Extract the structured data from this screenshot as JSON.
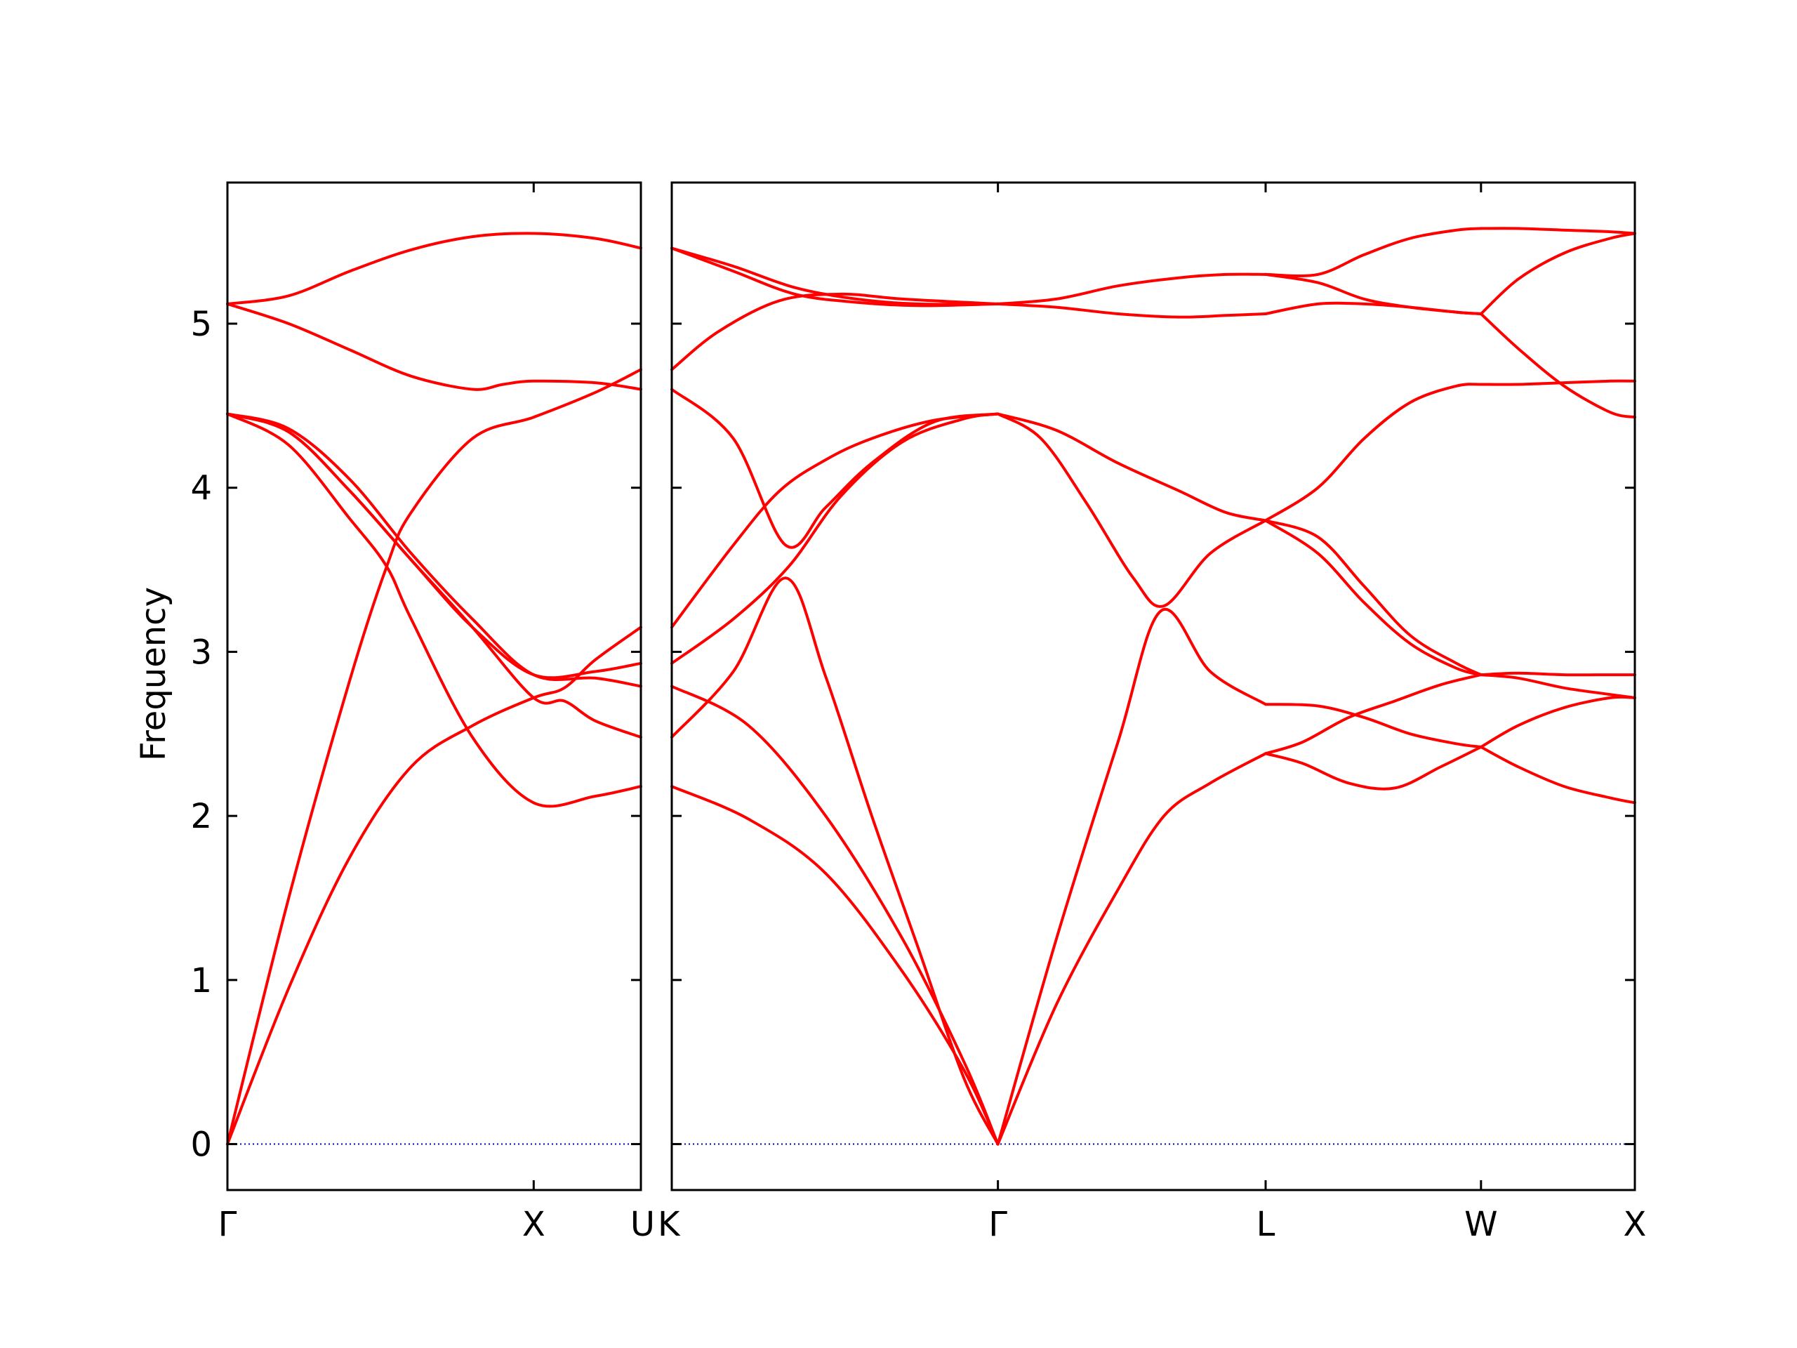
{
  "chart_data": {
    "type": "line",
    "title": "",
    "ylabel": "Frequency",
    "xlabel": "",
    "ylim": [
      -0.28,
      5.86
    ],
    "yticks": [
      0,
      1,
      2,
      3,
      4,
      5
    ],
    "ytick_labels": [
      "0",
      "1",
      "2",
      "3",
      "4",
      "5"
    ],
    "grid": false,
    "legend": "none",
    "colors": {
      "bands": "#ff0000",
      "zero_line": "#0000cc",
      "axes": "#000000"
    },
    "panels": [
      {
        "name": "panel-left",
        "x_range": [
          0,
          1.35
        ],
        "ticks": [
          {
            "x": 0,
            "label": "Γ"
          },
          {
            "x": 1.0,
            "label": "X"
          },
          {
            "x": 1.35,
            "label": "U"
          }
        ],
        "bands": [
          {
            "x": [
              0,
              0.2,
              0.4,
              0.52,
              0.6,
              0.8,
              1.0,
              1.2,
              1.35
            ],
            "y": [
              0,
              1.5,
              2.83,
              3.52,
              3.85,
              4.3,
              4.43,
              4.58,
              4.72
            ]
          },
          {
            "x": [
              0,
              0.2,
              0.4,
              0.6,
              0.8,
              1.0,
              1.1,
              1.2,
              1.35
            ],
            "y": [
              0,
              0.95,
              1.75,
              2.3,
              2.55,
              2.72,
              2.78,
              2.95,
              3.15
            ]
          },
          {
            "x": [
              0,
              0.2,
              0.4,
              0.52,
              0.6,
              0.8,
              1.0,
              1.2,
              1.35
            ],
            "y": [
              4.45,
              4.26,
              3.81,
              3.52,
              3.2,
              2.48,
              2.08,
              2.12,
              2.18
            ]
          },
          {
            "x": [
              0,
              0.2,
              0.4,
              0.6,
              0.8,
              1.0,
              1.2,
              1.35
            ],
            "y": [
              4.45,
              4.34,
              3.98,
              3.56,
              3.15,
              2.86,
              2.88,
              2.93
            ]
          },
          {
            "x": [
              0,
              0.2,
              0.4,
              0.6,
              0.8,
              1.0,
              1.1,
              1.2,
              1.35
            ],
            "y": [
              4.45,
              4.34,
              3.98,
              3.56,
              3.15,
              2.72,
              2.7,
              2.58,
              2.48
            ]
          },
          {
            "x": [
              0,
              0.2,
              0.4,
              0.6,
              0.8,
              1.0,
              1.2,
              1.35
            ],
            "y": [
              4.45,
              4.36,
              4.05,
              3.6,
              3.2,
              2.86,
              2.84,
              2.79
            ]
          },
          {
            "x": [
              0,
              0.2,
              0.4,
              0.6,
              0.8,
              1.0,
              1.2,
              1.35
            ],
            "y": [
              5.12,
              5.17,
              5.32,
              5.45,
              5.53,
              5.55,
              5.52,
              5.46
            ]
          },
          {
            "x": [
              0,
              0.2,
              0.4,
              0.6,
              0.8,
              0.9,
              1.0,
              1.2,
              1.35
            ],
            "y": [
              5.12,
              5.0,
              4.84,
              4.68,
              4.6,
              4.63,
              4.65,
              4.64,
              4.6
            ]
          }
        ]
      },
      {
        "name": "panel-right",
        "x_range": [
          1.35,
          4.48
        ],
        "ticks": [
          {
            "x": 1.35,
            "label": "K"
          },
          {
            "x": 2.41,
            "label": "Γ"
          },
          {
            "x": 3.28,
            "label": "L"
          },
          {
            "x": 3.98,
            "label": "W"
          },
          {
            "x": 4.48,
            "label": "X"
          }
        ],
        "bands": [
          {
            "x": [
              1.35,
              1.6,
              1.85,
              2.1,
              2.3,
              2.41
            ],
            "y": [
              2.18,
              1.98,
              1.65,
              1.05,
              0.45,
              0
            ]
          },
          {
            "x": [
              1.35,
              1.6,
              1.85,
              2.1,
              2.3,
              2.41
            ],
            "y": [
              2.79,
              2.55,
              2.0,
              1.25,
              0.5,
              0
            ]
          },
          {
            "x": [
              1.35,
              1.55,
              1.72,
              1.85,
              2.0,
              2.15,
              2.3,
              2.41
            ],
            "y": [
              2.48,
              2.88,
              3.45,
              2.85,
              2.0,
              1.2,
              0.4,
              0
            ]
          },
          {
            "x": [
              1.35,
              1.55,
              1.73,
              1.9,
              2.1,
              2.3,
              2.41
            ],
            "y": [
              2.93,
              3.2,
              3.52,
              3.95,
              4.28,
              4.42,
              4.45
            ]
          },
          {
            "x": [
              1.35,
              1.55,
              1.7,
              1.85,
              2.0,
              2.2,
              2.41
            ],
            "y": [
              3.15,
              3.65,
              3.98,
              4.17,
              4.3,
              4.41,
              4.45
            ]
          },
          {
            "x": [
              1.35,
              1.55,
              1.72,
              1.85,
              2.0,
              2.2,
              2.41
            ],
            "y": [
              4.6,
              4.3,
              3.65,
              3.88,
              4.15,
              4.4,
              4.45
            ]
          },
          {
            "x": [
              1.35,
              1.5,
              1.7,
              1.9,
              2.1,
              2.41
            ],
            "y": [
              4.72,
              4.95,
              5.14,
              5.18,
              5.15,
              5.12
            ]
          },
          {
            "x": [
              1.35,
              1.55,
              1.75,
              1.95,
              2.15,
              2.41
            ],
            "y": [
              5.46,
              5.35,
              5.22,
              5.15,
              5.12,
              5.12
            ]
          },
          {
            "x": [
              1.35,
              1.55,
              1.75,
              1.95,
              2.15,
              2.41
            ],
            "y": [
              5.46,
              5.32,
              5.18,
              5.13,
              5.11,
              5.12
            ]
          },
          {
            "x": [
              2.41,
              2.6,
              2.8,
              2.94,
              3.1,
              3.28
            ],
            "y": [
              0,
              1.25,
              2.45,
              3.25,
              2.88,
              2.68
            ]
          },
          {
            "x": [
              2.41,
              2.6,
              2.8,
              2.95,
              3.1,
              3.28
            ],
            "y": [
              0,
              0.85,
              1.55,
              2.0,
              2.2,
              2.38
            ]
          },
          {
            "x": [
              2.41,
              2.55,
              2.7,
              2.85,
              2.95,
              3.1,
              3.28
            ],
            "y": [
              4.45,
              4.3,
              3.9,
              3.45,
              3.28,
              3.6,
              3.8
            ]
          },
          {
            "x": [
              2.41,
              2.6,
              2.8,
              3.0,
              3.15,
              3.28
            ],
            "y": [
              4.45,
              4.35,
              4.15,
              3.98,
              3.85,
              3.8
            ]
          },
          {
            "x": [
              2.41,
              2.6,
              2.8,
              3.0,
              3.15,
              3.28
            ],
            "y": [
              5.12,
              5.15,
              5.23,
              5.28,
              5.3,
              5.3
            ]
          },
          {
            "x": [
              2.41,
              2.6,
              2.8,
              3.0,
              3.15,
              3.28
            ],
            "y": [
              5.12,
              5.1,
              5.06,
              5.04,
              5.05,
              5.06
            ]
          },
          {
            "x": [
              3.28,
              3.4,
              3.55,
              3.7,
              3.85,
              3.98
            ],
            "y": [
              2.38,
              2.32,
              2.2,
              2.17,
              2.3,
              2.42
            ]
          },
          {
            "x": [
              3.28,
              3.4,
              3.55,
              3.7,
              3.85,
              3.98
            ],
            "y": [
              2.38,
              2.45,
              2.6,
              2.7,
              2.8,
              2.86
            ]
          },
          {
            "x": [
              3.28,
              3.45,
              3.6,
              3.75,
              3.9,
              3.98
            ],
            "y": [
              2.68,
              2.67,
              2.6,
              2.5,
              2.44,
              2.42
            ]
          },
          {
            "x": [
              3.28,
              3.45,
              3.6,
              3.75,
              3.9,
              3.98
            ],
            "y": [
              3.8,
              3.6,
              3.3,
              3.05,
              2.9,
              2.86
            ]
          },
          {
            "x": [
              3.28,
              3.45,
              3.6,
              3.75,
              3.9,
              3.98
            ],
            "y": [
              3.8,
              3.7,
              3.4,
              3.1,
              2.93,
              2.86
            ]
          },
          {
            "x": [
              3.28,
              3.45,
              3.6,
              3.75,
              3.9,
              3.98
            ],
            "y": [
              3.8,
              4.0,
              4.3,
              4.52,
              4.62,
              4.63
            ]
          },
          {
            "x": [
              3.28,
              3.45,
              3.6,
              3.75,
              3.9,
              3.98
            ],
            "y": [
              5.3,
              5.25,
              5.15,
              5.1,
              5.07,
              5.06
            ]
          },
          {
            "x": [
              3.28,
              3.45,
              3.6,
              3.75,
              3.9,
              3.98
            ],
            "y": [
              5.06,
              5.12,
              5.12,
              5.1,
              5.07,
              5.06
            ]
          },
          {
            "x": [
              3.28,
              3.45,
              3.6,
              3.75,
              3.9,
              3.98
            ],
            "y": [
              5.3,
              5.3,
              5.42,
              5.52,
              5.57,
              5.58
            ]
          },
          {
            "x": [
              3.98,
              4.1,
              4.25,
              4.4,
              4.48
            ],
            "y": [
              2.42,
              2.3,
              2.18,
              2.11,
              2.08
            ]
          },
          {
            "x": [
              3.98,
              4.1,
              4.25,
              4.4,
              4.48
            ],
            "y": [
              2.42,
              2.55,
              2.66,
              2.72,
              2.72
            ]
          },
          {
            "x": [
              3.98,
              4.1,
              4.25,
              4.4,
              4.48
            ],
            "y": [
              2.86,
              2.84,
              2.78,
              2.74,
              2.72
            ]
          },
          {
            "x": [
              3.98,
              4.1,
              4.25,
              4.4,
              4.48
            ],
            "y": [
              2.86,
              2.87,
              2.86,
              2.86,
              2.86
            ]
          },
          {
            "x": [
              3.98,
              4.1,
              4.25,
              4.4,
              4.48
            ],
            "y": [
              4.63,
              4.63,
              4.64,
              4.65,
              4.65
            ]
          },
          {
            "x": [
              3.98,
              4.1,
              4.25,
              4.4,
              4.48
            ],
            "y": [
              5.06,
              4.85,
              4.62,
              4.46,
              4.43
            ]
          },
          {
            "x": [
              3.98,
              4.1,
              4.25,
              4.4,
              4.48
            ],
            "y": [
              5.06,
              5.27,
              5.43,
              5.52,
              5.55
            ]
          },
          {
            "x": [
              3.98,
              4.1,
              4.25,
              4.4,
              4.48
            ],
            "y": [
              5.58,
              5.58,
              5.57,
              5.56,
              5.55
            ]
          }
        ]
      }
    ]
  }
}
